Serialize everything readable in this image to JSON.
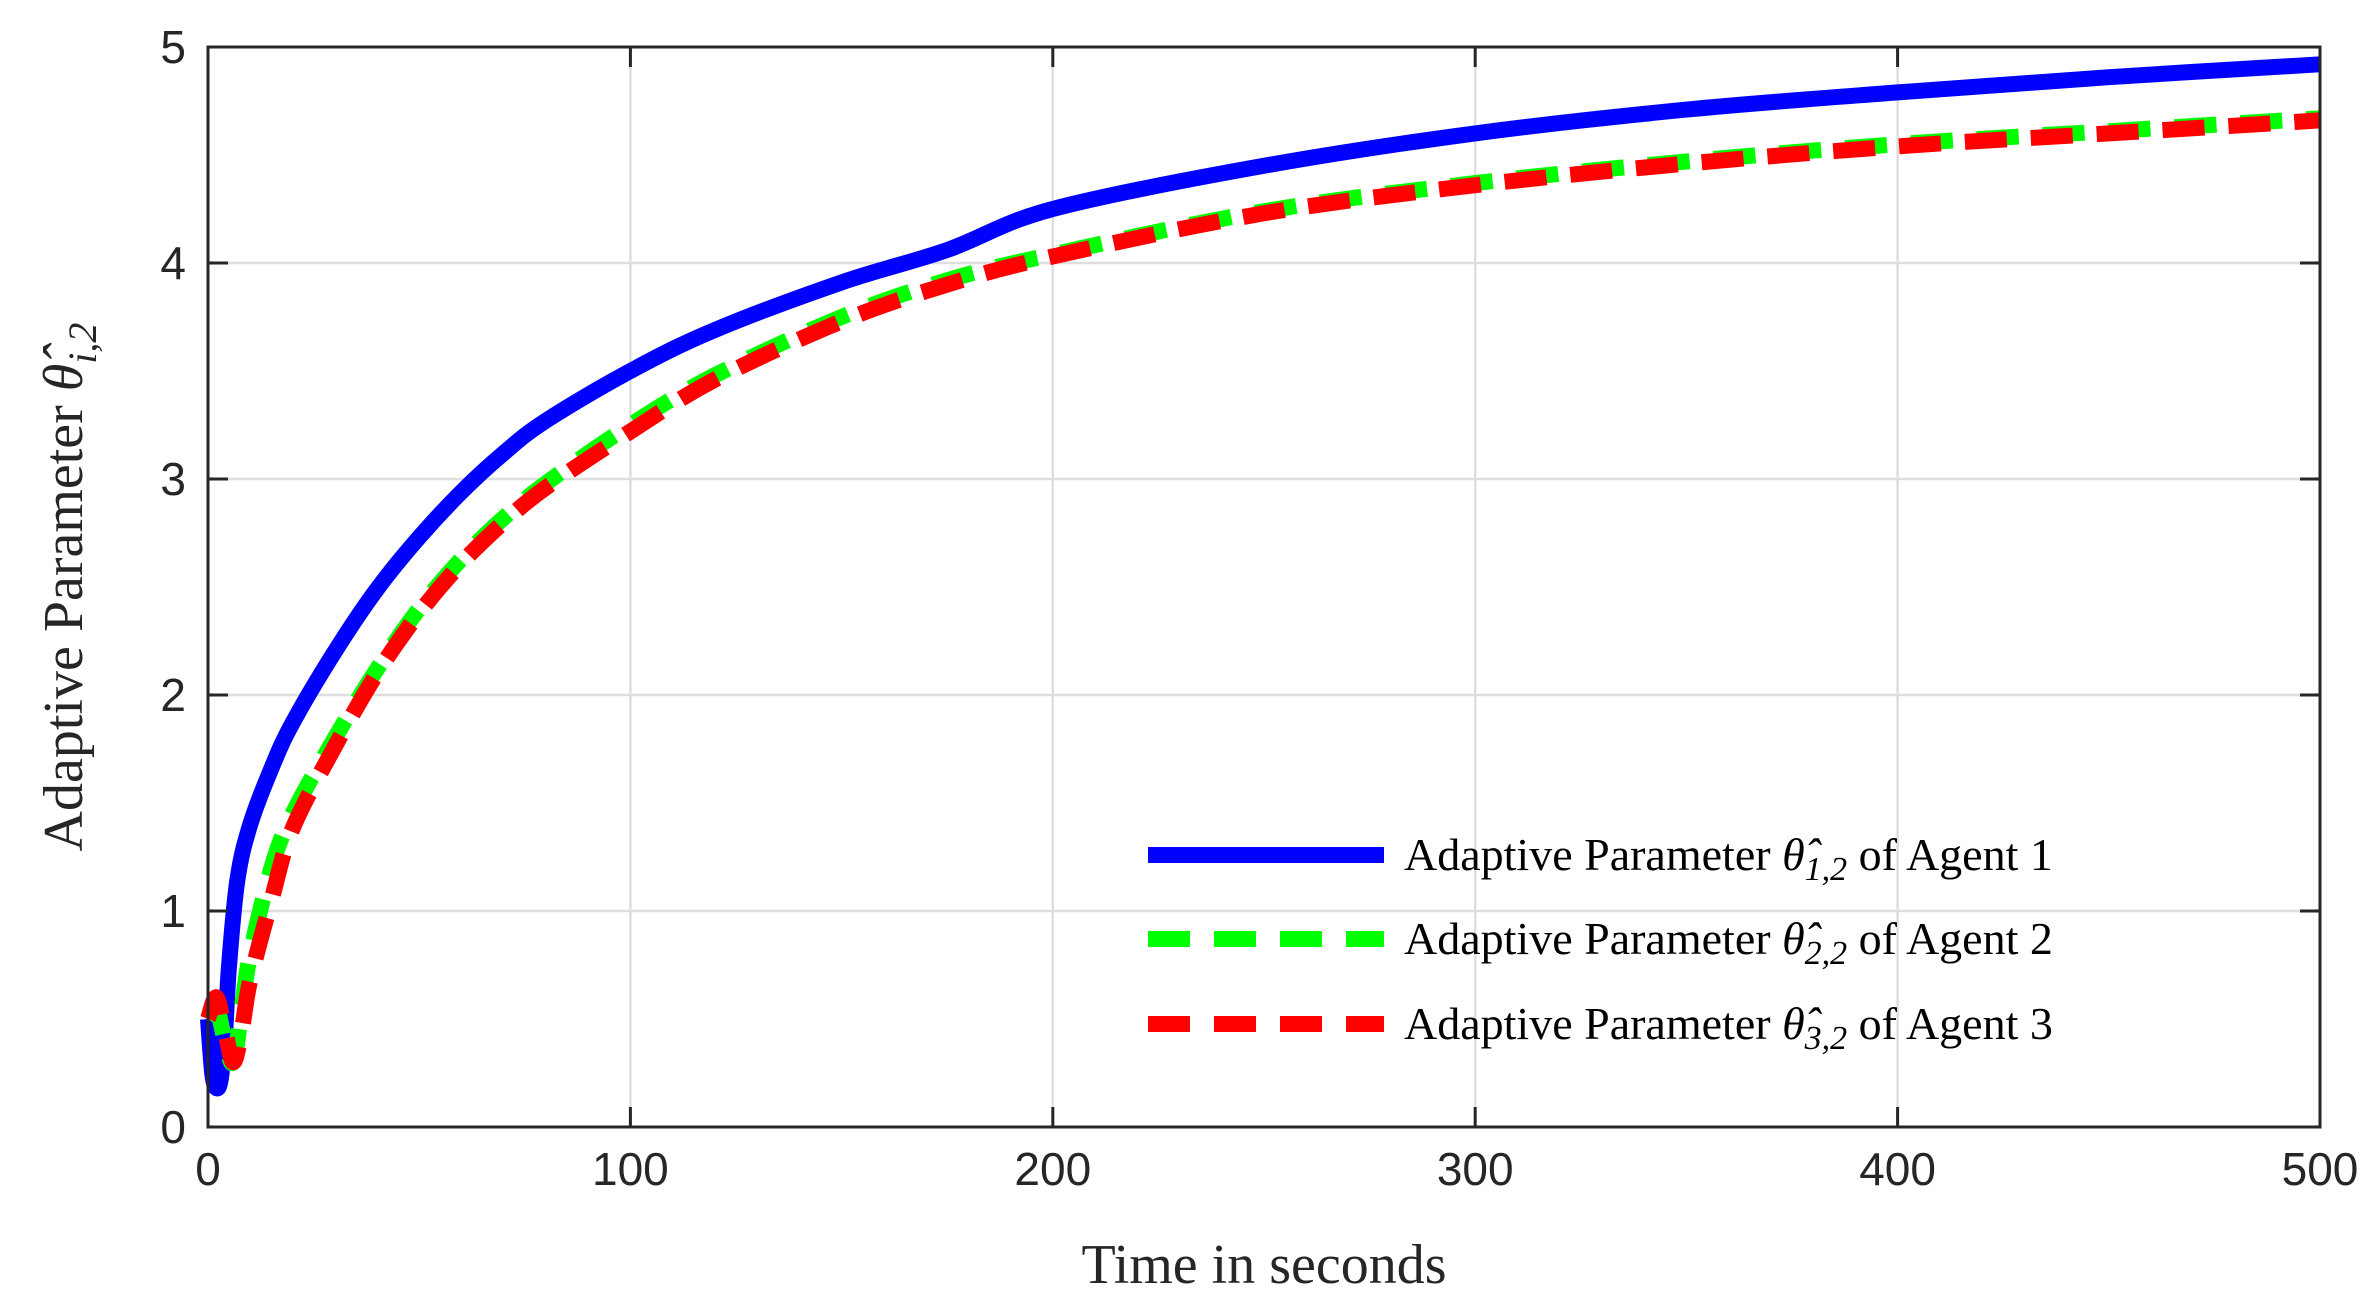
{
  "chart_data": {
    "type": "line",
    "title": "",
    "xlabel": "Time in seconds",
    "ylabel_prefix": "Adaptive Parameter ",
    "ylabel_symbol": "θ̂",
    "ylabel_sub": "i,2",
    "xlim": [
      0,
      500
    ],
    "ylim": [
      0,
      5
    ],
    "x_ticks": [
      0,
      100,
      200,
      300,
      400,
      500
    ],
    "y_ticks": [
      0,
      1,
      2,
      3,
      4,
      5
    ],
    "x_tick_labels": [
      "0",
      "100",
      "200",
      "300",
      "400",
      "500"
    ],
    "y_tick_labels": [
      "0",
      "1",
      "2",
      "3",
      "4",
      "5"
    ],
    "grid": true,
    "legend_position": "bottom-right",
    "series": [
      {
        "name": "Adaptive Parameter θ̂1,2 of Agent 1",
        "legend_prefix": "Adaptive Parameter ",
        "legend_symbol": "θ̂",
        "legend_sub": "1,2",
        "legend_suffix": " of Agent 1",
        "color": "#0000ff",
        "style": "solid",
        "x": [
          0,
          1,
          2,
          3,
          4,
          5,
          7,
          10,
          15,
          20,
          30,
          40,
          50,
          60,
          70,
          80,
          100,
          120,
          150,
          175,
          200,
          250,
          300,
          350,
          400,
          450,
          500
        ],
        "values": [
          0.5,
          0.25,
          0.18,
          0.22,
          0.42,
          0.75,
          1.15,
          1.4,
          1.66,
          1.87,
          2.2,
          2.49,
          2.73,
          2.94,
          3.12,
          3.27,
          3.5,
          3.69,
          3.91,
          4.06,
          4.25,
          4.45,
          4.6,
          4.71,
          4.79,
          4.86,
          4.92
        ]
      },
      {
        "name": "Adaptive Parameter θ̂2,2 of Agent 2",
        "legend_prefix": "Adaptive Parameter ",
        "legend_symbol": "θ̂",
        "legend_sub": "2,2",
        "legend_suffix": " of Agent 2",
        "color": "#00ff00",
        "style": "dashed",
        "x": [
          0,
          2,
          4,
          6,
          8,
          10,
          15,
          20,
          30,
          40,
          50,
          60,
          70,
          80,
          100,
          120,
          150,
          175,
          200,
          250,
          300,
          350,
          400,
          450,
          500
        ],
        "values": [
          0.5,
          0.55,
          0.4,
          0.3,
          0.55,
          0.8,
          1.2,
          1.45,
          1.8,
          2.12,
          2.4,
          2.63,
          2.82,
          2.98,
          3.25,
          3.48,
          3.75,
          3.92,
          4.04,
          4.24,
          4.37,
          4.47,
          4.55,
          4.61,
          4.67
        ]
      },
      {
        "name": "Adaptive Parameter θ̂3,2 of Agent 3",
        "legend_prefix": "Adaptive Parameter ",
        "legend_symbol": "θ̂",
        "legend_sub": "3,2",
        "legend_suffix": " of Agent 3",
        "color": "#ff0000",
        "style": "dashed",
        "x": [
          0,
          2,
          4,
          6,
          8,
          10,
          15,
          20,
          30,
          40,
          50,
          60,
          70,
          80,
          100,
          120,
          150,
          175,
          200,
          250,
          300,
          350,
          400,
          450,
          500
        ],
        "values": [
          0.5,
          0.6,
          0.45,
          0.3,
          0.45,
          0.68,
          1.05,
          1.38,
          1.76,
          2.1,
          2.38,
          2.61,
          2.8,
          2.96,
          3.22,
          3.46,
          3.73,
          3.9,
          4.03,
          4.23,
          4.36,
          4.46,
          4.54,
          4.6,
          4.66
        ]
      }
    ]
  }
}
